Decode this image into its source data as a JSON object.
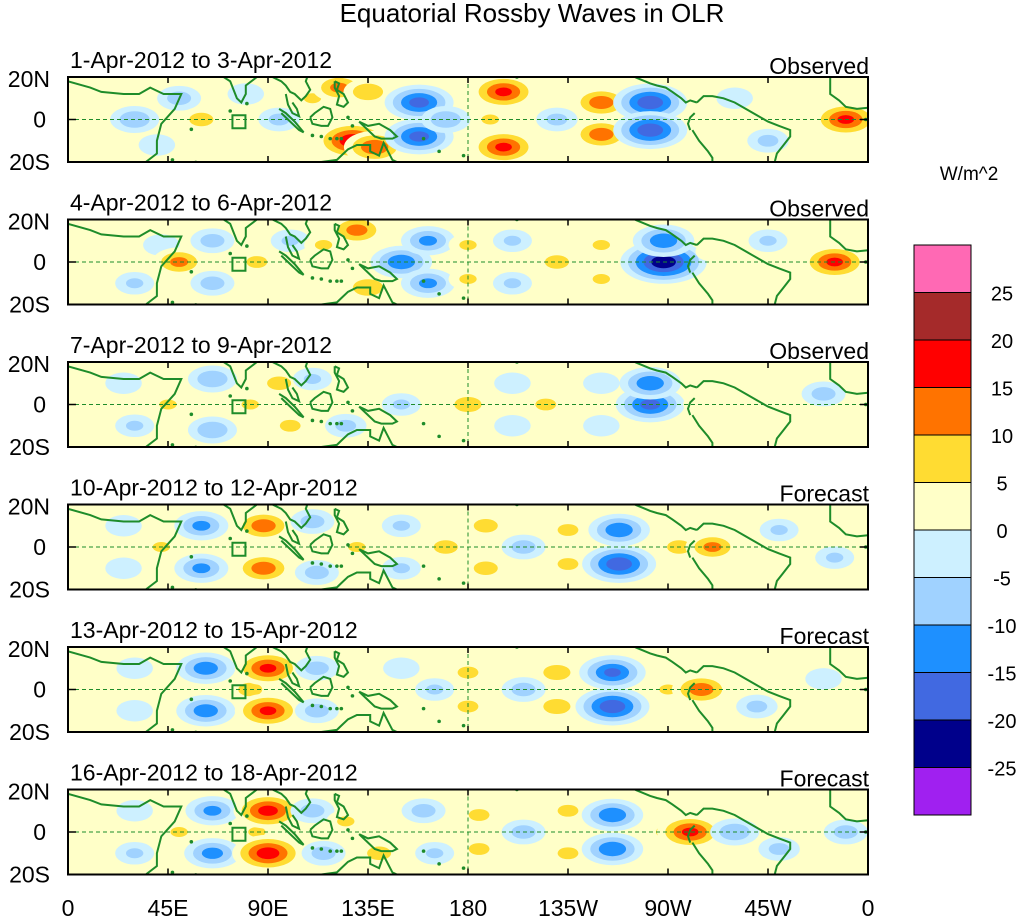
{
  "chart_data": {
    "type": "heatmap",
    "title": "Equatorial Rossby Waves in OLR",
    "units": "W/m^2",
    "x_axis": {
      "range_deg_east": [
        0,
        360
      ],
      "ticks": [
        {
          "lon": 0,
          "label": "0"
        },
        {
          "lon": 45,
          "label": "45E"
        },
        {
          "lon": 90,
          "label": "90E"
        },
        {
          "lon": 135,
          "label": "135E"
        },
        {
          "lon": 180,
          "label": "180"
        },
        {
          "lon": 225,
          "label": "135W"
        },
        {
          "lon": 270,
          "label": "90W"
        },
        {
          "lon": 315,
          "label": "45W"
        },
        {
          "lon": 360,
          "label": "0"
        }
      ]
    },
    "y_axis": {
      "range_deg": [
        -20,
        20
      ],
      "ticks": [
        {
          "lat": 20,
          "label": "20N"
        },
        {
          "lat": 0,
          "label": "0"
        },
        {
          "lat": -20,
          "label": "20S"
        }
      ]
    },
    "color_scale": {
      "levels": [
        -30,
        -25,
        -20,
        -15,
        -10,
        -5,
        0,
        5,
        10,
        15,
        20,
        25,
        30
      ],
      "labels": [
        "25",
        "20",
        "15",
        "10",
        "5",
        "0",
        "-5",
        "-10",
        "-15",
        "-20",
        "-25"
      ],
      "colors": [
        "#a020f0",
        "#00008b",
        "#4169e1",
        "#1e90ff",
        "#a0d2ff",
        "#cdf0ff",
        "#ffffc8",
        "#ffdc32",
        "#ff7300",
        "#ff0000",
        "#a52a2a",
        "#ff69b4"
      ]
    },
    "panels": [
      {
        "date_range": "1-Apr-2012 to 3-Apr-2012",
        "kind": "Observed",
        "anomalies": [
          {
            "lon": 12,
            "lat": 0,
            "value": 5
          },
          {
            "lon": 22,
            "lat": 10,
            "value": 5
          },
          {
            "lon": 30,
            "lat": 0,
            "value": -10
          },
          {
            "lon": 40,
            "lat": -12,
            "value": -5
          },
          {
            "lon": 50,
            "lat": 10,
            "value": -8
          },
          {
            "lon": 60,
            "lat": 0,
            "value": 8
          },
          {
            "lon": 80,
            "lat": 12,
            "value": -5
          },
          {
            "lon": 75,
            "lat": -12,
            "value": 5
          },
          {
            "lon": 95,
            "lat": 0,
            "value": -7
          },
          {
            "lon": 110,
            "lat": 10,
            "value": 6
          },
          {
            "lon": 122,
            "lat": 15,
            "value": 12
          },
          {
            "lon": 135,
            "lat": 13,
            "value": 10
          },
          {
            "lon": 128,
            "lat": -10,
            "value": 20
          },
          {
            "lon": 138,
            "lat": -13,
            "value": 15
          },
          {
            "lon": 158,
            "lat": 8,
            "value": -18
          },
          {
            "lon": 158,
            "lat": -8,
            "value": -18
          },
          {
            "lon": 170,
            "lat": 0,
            "value": -10
          },
          {
            "lon": 190,
            "lat": 0,
            "value": 6
          },
          {
            "lon": 196,
            "lat": 13,
            "value": 17
          },
          {
            "lon": 196,
            "lat": -13,
            "value": 17
          },
          {
            "lon": 220,
            "lat": 0,
            "value": -7
          },
          {
            "lon": 240,
            "lat": 8,
            "value": 14
          },
          {
            "lon": 240,
            "lat": -7,
            "value": 14
          },
          {
            "lon": 262,
            "lat": 8,
            "value": -20
          },
          {
            "lon": 262,
            "lat": -5,
            "value": -20
          },
          {
            "lon": 285,
            "lat": 0,
            "value": 5
          },
          {
            "lon": 300,
            "lat": 10,
            "value": -5
          },
          {
            "lon": 315,
            "lat": -10,
            "value": -7
          },
          {
            "lon": 340,
            "lat": 8,
            "value": 4
          },
          {
            "lon": 350,
            "lat": 0,
            "value": 17
          }
        ]
      },
      {
        "date_range": "4-Apr-2012 to 6-Apr-2012",
        "kind": "Observed",
        "anomalies": [
          {
            "lon": 15,
            "lat": 0,
            "value": 5
          },
          {
            "lon": 30,
            "lat": -10,
            "value": -6
          },
          {
            "lon": 42,
            "lat": 8,
            "value": -5
          },
          {
            "lon": 50,
            "lat": 0,
            "value": 12
          },
          {
            "lon": 65,
            "lat": 10,
            "value": -8
          },
          {
            "lon": 65,
            "lat": -10,
            "value": -8
          },
          {
            "lon": 85,
            "lat": 0,
            "value": 7
          },
          {
            "lon": 100,
            "lat": 10,
            "value": -6
          },
          {
            "lon": 105,
            "lat": -12,
            "value": 5
          },
          {
            "lon": 115,
            "lat": 8,
            "value": 6
          },
          {
            "lon": 130,
            "lat": 15,
            "value": 13
          },
          {
            "lon": 135,
            "lat": -12,
            "value": 10
          },
          {
            "lon": 150,
            "lat": 0,
            "value": -15
          },
          {
            "lon": 162,
            "lat": 10,
            "value": -12
          },
          {
            "lon": 162,
            "lat": -10,
            "value": -12
          },
          {
            "lon": 180,
            "lat": 8,
            "value": 6
          },
          {
            "lon": 180,
            "lat": -8,
            "value": 6
          },
          {
            "lon": 200,
            "lat": 10,
            "value": -6
          },
          {
            "lon": 200,
            "lat": -10,
            "value": -6
          },
          {
            "lon": 220,
            "lat": 0,
            "value": 8
          },
          {
            "lon": 240,
            "lat": 8,
            "value": 6
          },
          {
            "lon": 240,
            "lat": -8,
            "value": 6
          },
          {
            "lon": 268,
            "lat": 0,
            "value": -25
          },
          {
            "lon": 268,
            "lat": 10,
            "value": -15
          },
          {
            "lon": 290,
            "lat": 5,
            "value": 4
          },
          {
            "lon": 315,
            "lat": 10,
            "value": -6
          },
          {
            "lon": 345,
            "lat": 0,
            "value": 17
          }
        ]
      },
      {
        "date_range": "7-Apr-2012 to 9-Apr-2012",
        "kind": "Observed",
        "anomalies": [
          {
            "lon": 10,
            "lat": 0,
            "value": 5
          },
          {
            "lon": 25,
            "lat": 10,
            "value": -5
          },
          {
            "lon": 30,
            "lat": -10,
            "value": -6
          },
          {
            "lon": 45,
            "lat": 0,
            "value": 6
          },
          {
            "lon": 65,
            "lat": 12,
            "value": -10
          },
          {
            "lon": 65,
            "lat": -12,
            "value": -10
          },
          {
            "lon": 82,
            "lat": 0,
            "value": 6
          },
          {
            "lon": 95,
            "lat": 10,
            "value": 8
          },
          {
            "lon": 100,
            "lat": -10,
            "value": 7
          },
          {
            "lon": 110,
            "lat": 12,
            "value": -6
          },
          {
            "lon": 125,
            "lat": -10,
            "value": -7
          },
          {
            "lon": 150,
            "lat": 0,
            "value": -6
          },
          {
            "lon": 180,
            "lat": 0,
            "value": 9
          },
          {
            "lon": 200,
            "lat": 10,
            "value": -5
          },
          {
            "lon": 200,
            "lat": -10,
            "value": -5
          },
          {
            "lon": 215,
            "lat": 0,
            "value": 7
          },
          {
            "lon": 240,
            "lat": 10,
            "value": -5
          },
          {
            "lon": 240,
            "lat": -10,
            "value": -5
          },
          {
            "lon": 262,
            "lat": 0,
            "value": -18
          },
          {
            "lon": 262,
            "lat": 10,
            "value": -15
          },
          {
            "lon": 285,
            "lat": 0,
            "value": 5
          },
          {
            "lon": 310,
            "lat": -8,
            "value": 5
          },
          {
            "lon": 340,
            "lat": 5,
            "value": -8
          }
        ]
      },
      {
        "date_range": "10-Apr-2012 to 12-Apr-2012",
        "kind": "Forecast",
        "anomalies": [
          {
            "lon": 12,
            "lat": 0,
            "value": 4
          },
          {
            "lon": 25,
            "lat": 10,
            "value": -5
          },
          {
            "lon": 25,
            "lat": -10,
            "value": -5
          },
          {
            "lon": 42,
            "lat": 0,
            "value": 6
          },
          {
            "lon": 60,
            "lat": 10,
            "value": -12
          },
          {
            "lon": 60,
            "lat": -10,
            "value": -12
          },
          {
            "lon": 80,
            "lat": 0,
            "value": 5
          },
          {
            "lon": 88,
            "lat": 10,
            "value": 14
          },
          {
            "lon": 88,
            "lat": -10,
            "value": 14
          },
          {
            "lon": 110,
            "lat": 12,
            "value": -8
          },
          {
            "lon": 112,
            "lat": -12,
            "value": -8
          },
          {
            "lon": 130,
            "lat": 0,
            "value": 6
          },
          {
            "lon": 150,
            "lat": 10,
            "value": -6
          },
          {
            "lon": 150,
            "lat": -10,
            "value": -6
          },
          {
            "lon": 170,
            "lat": 0,
            "value": 8
          },
          {
            "lon": 188,
            "lat": 10,
            "value": 8
          },
          {
            "lon": 188,
            "lat": -10,
            "value": 8
          },
          {
            "lon": 205,
            "lat": 0,
            "value": -8
          },
          {
            "lon": 225,
            "lat": 8,
            "value": 7
          },
          {
            "lon": 225,
            "lat": -8,
            "value": 7
          },
          {
            "lon": 248,
            "lat": 8,
            "value": -15
          },
          {
            "lon": 248,
            "lat": -8,
            "value": -20
          },
          {
            "lon": 275,
            "lat": 0,
            "value": 8
          },
          {
            "lon": 290,
            "lat": 0,
            "value": 12
          },
          {
            "lon": 320,
            "lat": 8,
            "value": -6
          },
          {
            "lon": 345,
            "lat": -5,
            "value": -6
          }
        ]
      },
      {
        "date_range": "13-Apr-2012 to 15-Apr-2012",
        "kind": "Forecast",
        "anomalies": [
          {
            "lon": 15,
            "lat": 0,
            "value": 4
          },
          {
            "lon": 30,
            "lat": 10,
            "value": -5
          },
          {
            "lon": 30,
            "lat": -10,
            "value": -5
          },
          {
            "lon": 50,
            "lat": 0,
            "value": 5
          },
          {
            "lon": 62,
            "lat": 10,
            "value": -14
          },
          {
            "lon": 62,
            "lat": -10,
            "value": -14
          },
          {
            "lon": 82,
            "lat": 0,
            "value": 8
          },
          {
            "lon": 90,
            "lat": 10,
            "value": 17
          },
          {
            "lon": 90,
            "lat": -10,
            "value": 17
          },
          {
            "lon": 112,
            "lat": 10,
            "value": -8
          },
          {
            "lon": 112,
            "lat": -10,
            "value": -8
          },
          {
            "lon": 135,
            "lat": 0,
            "value": 5
          },
          {
            "lon": 150,
            "lat": 10,
            "value": -5
          },
          {
            "lon": 165,
            "lat": 0,
            "value": -6
          },
          {
            "lon": 180,
            "lat": 8,
            "value": 7
          },
          {
            "lon": 180,
            "lat": -8,
            "value": 7
          },
          {
            "lon": 205,
            "lat": 0,
            "value": -8
          },
          {
            "lon": 220,
            "lat": 8,
            "value": 9
          },
          {
            "lon": 220,
            "lat": -8,
            "value": 9
          },
          {
            "lon": 245,
            "lat": 8,
            "value": -17
          },
          {
            "lon": 245,
            "lat": -8,
            "value": -20
          },
          {
            "lon": 270,
            "lat": 0,
            "value": 6
          },
          {
            "lon": 285,
            "lat": 0,
            "value": 14
          },
          {
            "lon": 310,
            "lat": -8,
            "value": -7
          },
          {
            "lon": 340,
            "lat": 5,
            "value": -5
          }
        ]
      },
      {
        "date_range": "16-Apr-2012 to 18-Apr-2012",
        "kind": "Forecast",
        "anomalies": [
          {
            "lon": 15,
            "lat": 0,
            "value": 4
          },
          {
            "lon": 30,
            "lat": 10,
            "value": -5
          },
          {
            "lon": 30,
            "lat": -10,
            "value": -6
          },
          {
            "lon": 50,
            "lat": 0,
            "value": 6
          },
          {
            "lon": 65,
            "lat": 10,
            "value": -12
          },
          {
            "lon": 65,
            "lat": -10,
            "value": -13
          },
          {
            "lon": 85,
            "lat": 0,
            "value": 6
          },
          {
            "lon": 90,
            "lat": 10,
            "value": 18
          },
          {
            "lon": 90,
            "lat": -10,
            "value": 19
          },
          {
            "lon": 110,
            "lat": 10,
            "value": -8
          },
          {
            "lon": 115,
            "lat": -10,
            "value": -8
          },
          {
            "lon": 125,
            "lat": 5,
            "value": 6
          },
          {
            "lon": 140,
            "lat": -10,
            "value": 8
          },
          {
            "lon": 160,
            "lat": 10,
            "value": -8
          },
          {
            "lon": 165,
            "lat": -10,
            "value": -6
          },
          {
            "lon": 185,
            "lat": 8,
            "value": 7
          },
          {
            "lon": 185,
            "lat": -8,
            "value": 7
          },
          {
            "lon": 205,
            "lat": 0,
            "value": -8
          },
          {
            "lon": 225,
            "lat": 10,
            "value": 7
          },
          {
            "lon": 225,
            "lat": -10,
            "value": 7
          },
          {
            "lon": 245,
            "lat": 8,
            "value": -15
          },
          {
            "lon": 245,
            "lat": -8,
            "value": -15
          },
          {
            "lon": 270,
            "lat": 0,
            "value": 8
          },
          {
            "lon": 280,
            "lat": 0,
            "value": 17
          },
          {
            "lon": 300,
            "lat": 0,
            "value": -10
          },
          {
            "lon": 320,
            "lat": -8,
            "value": -7
          },
          {
            "lon": 350,
            "lat": 0,
            "value": -8
          }
        ]
      }
    ]
  }
}
